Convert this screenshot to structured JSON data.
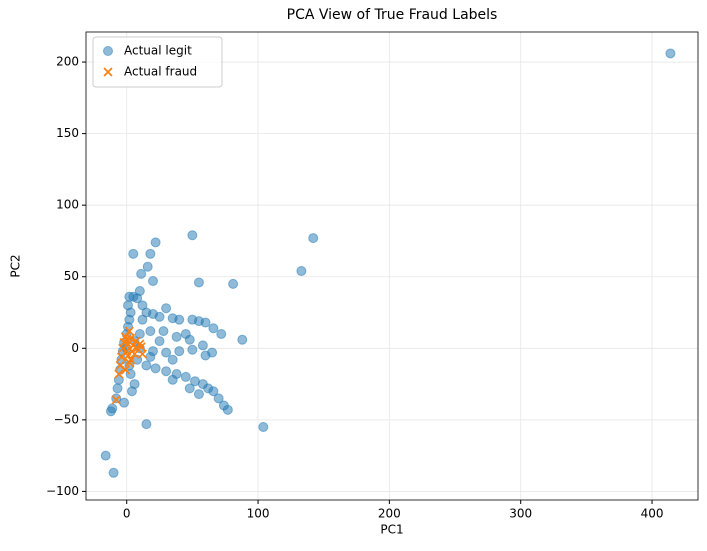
{
  "chart_data": {
    "type": "scatter",
    "title": "PCA View of True Fraud Labels",
    "x_label": "PC1",
    "y_label": "PC2",
    "xlim": [
      -31,
      435
    ],
    "ylim": [
      -106,
      221
    ],
    "xticks": [
      0,
      100,
      200,
      300,
      400
    ],
    "yticks": [
      {
        "value": -100,
        "label": "−100"
      },
      {
        "value": -50,
        "label": "−50"
      },
      0,
      50,
      100,
      150,
      200
    ],
    "grid": true,
    "legend": "upper left",
    "series": [
      {
        "name": "Actual legit",
        "color": "#1f77b4",
        "marker": "circle",
        "x": [
          414,
          -16,
          -10,
          142,
          133,
          104,
          15,
          50,
          22,
          5,
          18,
          11,
          16,
          81,
          88,
          55,
          20,
          -11,
          -12,
          -8,
          -7,
          -6,
          -5,
          -4,
          -3,
          -2,
          0,
          1,
          2,
          3,
          1,
          2,
          5,
          10,
          8,
          12,
          15,
          20,
          25,
          30,
          35,
          40,
          50,
          55,
          60,
          66,
          72,
          10,
          18,
          28,
          38,
          48,
          58,
          65,
          10,
          20,
          30,
          40,
          50,
          60,
          8,
          15,
          22,
          30,
          38,
          45,
          52,
          58,
          62,
          66,
          70,
          74,
          77,
          55,
          48,
          35,
          3,
          2,
          6,
          4,
          -2,
          25,
          35,
          45,
          12,
          6,
          0,
          18
        ],
        "y": [
          206,
          -75,
          -87,
          77,
          54,
          -55,
          -53,
          79,
          74,
          66,
          66,
          52,
          57,
          45,
          6,
          46,
          47,
          -42,
          -44,
          -35,
          -28,
          -22,
          -15,
          -8,
          -2,
          4,
          10,
          15,
          20,
          25,
          30,
          36,
          36,
          40,
          35,
          30,
          25,
          24,
          22,
          28,
          21,
          20,
          20,
          19,
          18,
          14,
          10,
          10,
          12,
          12,
          8,
          6,
          2,
          -3,
          0,
          -2,
          -3,
          -2,
          -1,
          -5,
          -8,
          -12,
          -14,
          -16,
          -18,
          -20,
          -23,
          -25,
          -28,
          -30,
          -35,
          -40,
          -43,
          -32,
          -28,
          -22,
          -18,
          -12,
          -25,
          -30,
          -38,
          5,
          -8,
          10,
          20,
          5,
          0,
          -6
        ]
      },
      {
        "name": "Actual fraud",
        "color": "#ff7f0e",
        "marker": "x",
        "x": [
          -8,
          -6,
          -5,
          -4,
          -3,
          -2,
          -1,
          0,
          1,
          2,
          3,
          1,
          4,
          5,
          6,
          8,
          10,
          12,
          11,
          7,
          2,
          -1,
          0,
          3
        ],
        "y": [
          -36,
          -18,
          -12,
          -6,
          0,
          4,
          8,
          -2,
          3,
          12,
          7,
          -5,
          -2,
          2,
          -4,
          0,
          3,
          -4,
          1,
          5,
          -10,
          -15,
          6,
          -8
        ]
      }
    ]
  }
}
